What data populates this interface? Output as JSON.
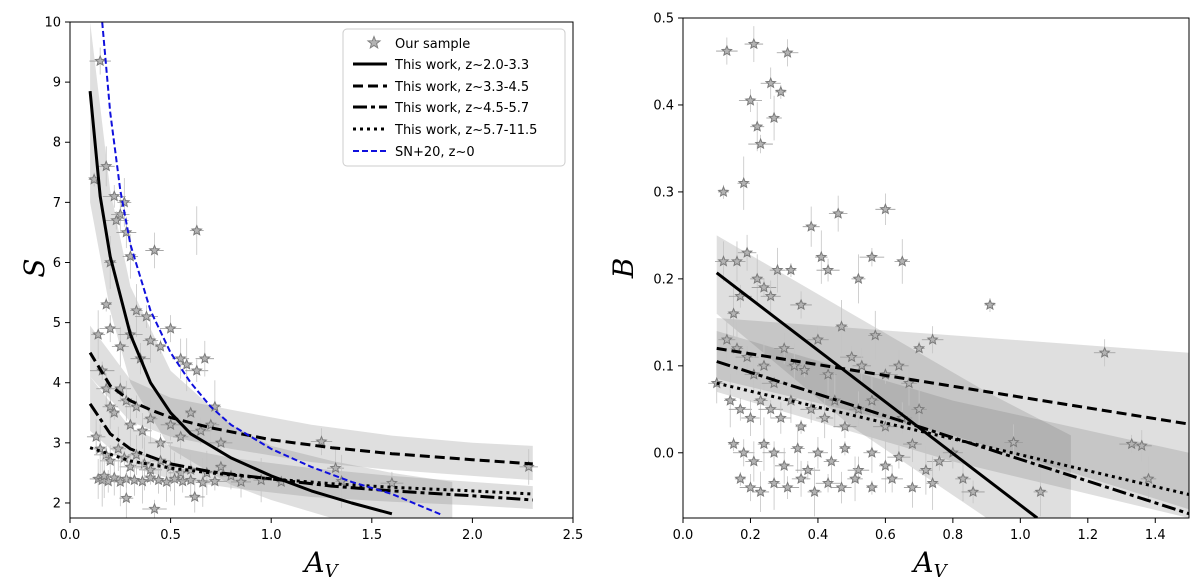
{
  "chart_data": [
    {
      "type": "scatter",
      "panel": "left",
      "xlabel": "A_V",
      "ylabel": "S",
      "xlim": [
        0.0,
        2.5
      ],
      "ylim": [
        1.75,
        10.0
      ],
      "xticks": [
        "0.0",
        "0.5",
        "1.0",
        "1.5",
        "2.0",
        "2.5"
      ],
      "yticks": [
        "2",
        "3",
        "4",
        "5",
        "6",
        "7",
        "8",
        "9",
        "10"
      ],
      "legend": {
        "position": "top-right",
        "entries": [
          {
            "label": "Our sample",
            "style": "star"
          },
          {
            "label": "This work, z~2.0-3.3",
            "style": "solid"
          },
          {
            "label": "This work, z~3.3-4.5",
            "style": "dashed"
          },
          {
            "label": "This work, z~4.5-5.7",
            "style": "dashdot"
          },
          {
            "label": "This work, z~5.7-11.5",
            "style": "dotted"
          },
          {
            "label": "SN+20, z~0",
            "style": "blue-dashed"
          }
        ]
      },
      "series": [
        {
          "name": "This work, z~2.0-3.3",
          "style": "solid",
          "x": [
            0.1,
            0.15,
            0.2,
            0.3,
            0.4,
            0.5,
            0.6,
            0.8,
            1.0,
            1.2,
            1.4,
            1.6
          ],
          "y": [
            8.85,
            7.1,
            6.1,
            4.8,
            4.0,
            3.5,
            3.15,
            2.75,
            2.45,
            2.2,
            2.0,
            1.82
          ]
        },
        {
          "name": "This work, z~3.3-4.5",
          "style": "dashed",
          "x": [
            0.1,
            0.2,
            0.3,
            0.4,
            0.5,
            0.7,
            1.0,
            1.3,
            1.6,
            2.0,
            2.3
          ],
          "y": [
            4.5,
            3.95,
            3.7,
            3.55,
            3.42,
            3.25,
            3.05,
            2.92,
            2.82,
            2.72,
            2.65
          ]
        },
        {
          "name": "This work, z~4.5-5.7",
          "style": "dashdot",
          "x": [
            0.1,
            0.2,
            0.3,
            0.4,
            0.5,
            0.7,
            1.0,
            1.3,
            1.6,
            2.0,
            2.3
          ],
          "y": [
            3.65,
            3.15,
            2.9,
            2.77,
            2.65,
            2.52,
            2.4,
            2.28,
            2.2,
            2.12,
            2.05
          ]
        },
        {
          "name": "This work, z~5.7-11.5",
          "style": "dotted",
          "x": [
            0.1,
            0.3,
            0.5,
            0.7,
            1.0,
            1.3,
            1.6,
            2.0,
            2.3
          ],
          "y": [
            2.92,
            2.7,
            2.58,
            2.5,
            2.4,
            2.32,
            2.26,
            2.2,
            2.15
          ]
        },
        {
          "name": "SN+20, z~0",
          "style": "blue-dashed",
          "x": [
            0.16,
            0.2,
            0.25,
            0.3,
            0.4,
            0.5,
            0.6,
            0.7,
            0.8,
            1.0,
            1.2,
            1.4,
            1.6,
            1.85
          ],
          "y": [
            10.0,
            8.5,
            7.2,
            6.3,
            5.2,
            4.5,
            4.0,
            3.6,
            3.3,
            2.9,
            2.6,
            2.35,
            2.15,
            1.8
          ]
        }
      ],
      "bands": [
        {
          "series": "This work, z~2.0-3.3",
          "x": [
            0.1,
            0.2,
            0.3,
            0.5,
            0.8,
            1.0,
            1.3,
            1.6,
            1.9
          ],
          "lo": [
            7.0,
            5.2,
            4.0,
            2.9,
            2.3,
            2.05,
            1.75,
            1.75,
            1.75
          ],
          "hi": [
            10.0,
            7.2,
            5.6,
            4.2,
            3.3,
            2.95,
            2.7,
            2.5,
            2.35
          ]
        },
        {
          "series": "This work, z~3.3-4.5",
          "x": [
            0.1,
            0.3,
            0.5,
            0.8,
            1.2,
            1.6,
            2.0,
            2.3
          ],
          "lo": [
            4.1,
            3.35,
            3.1,
            2.9,
            2.68,
            2.55,
            2.45,
            2.38
          ],
          "hi": [
            4.95,
            4.05,
            3.75,
            3.55,
            3.3,
            3.12,
            3.0,
            2.95
          ]
        },
        {
          "series": "This work, z~4.5-5.7",
          "x": [
            0.1,
            0.3,
            0.5,
            0.8,
            1.2,
            1.6,
            2.0,
            2.3
          ],
          "lo": [
            3.2,
            2.6,
            2.4,
            2.25,
            2.1,
            2.02,
            1.96,
            1.9
          ],
          "hi": [
            4.1,
            3.25,
            2.95,
            2.75,
            2.58,
            2.45,
            2.35,
            2.28
          ]
        }
      ],
      "points": [
        [
          0.12,
          7.38
        ],
        [
          0.15,
          9.35
        ],
        [
          0.18,
          7.6
        ],
        [
          0.2,
          6.0
        ],
        [
          0.22,
          7.1
        ],
        [
          0.25,
          6.8
        ],
        [
          0.27,
          7.0
        ],
        [
          0.23,
          6.7
        ],
        [
          0.28,
          6.5
        ],
        [
          0.3,
          6.1
        ],
        [
          0.18,
          5.3
        ],
        [
          0.2,
          4.9
        ],
        [
          0.25,
          4.6
        ],
        [
          0.33,
          5.2
        ],
        [
          0.38,
          5.1
        ],
        [
          0.42,
          6.2
        ],
        [
          0.63,
          6.53
        ],
        [
          0.3,
          4.8
        ],
        [
          0.35,
          4.4
        ],
        [
          0.4,
          4.7
        ],
        [
          0.45,
          4.6
        ],
        [
          0.5,
          4.9
        ],
        [
          0.55,
          4.4
        ],
        [
          0.58,
          4.3
        ],
        [
          0.63,
          4.2
        ],
        [
          0.67,
          4.4
        ],
        [
          0.14,
          4.8
        ],
        [
          0.16,
          4.2
        ],
        [
          0.18,
          3.9
        ],
        [
          0.2,
          3.6
        ],
        [
          0.22,
          3.5
        ],
        [
          0.25,
          3.9
        ],
        [
          0.28,
          3.7
        ],
        [
          0.3,
          3.3
        ],
        [
          0.33,
          3.6
        ],
        [
          0.36,
          3.2
        ],
        [
          0.4,
          3.4
        ],
        [
          0.45,
          3.0
        ],
        [
          0.5,
          3.3
        ],
        [
          0.55,
          3.1
        ],
        [
          0.6,
          3.5
        ],
        [
          0.65,
          3.2
        ],
        [
          0.7,
          3.3
        ],
        [
          0.72,
          3.6
        ],
        [
          0.75,
          3.0
        ],
        [
          0.13,
          3.1
        ],
        [
          0.15,
          2.9
        ],
        [
          0.18,
          2.8
        ],
        [
          0.2,
          2.7
        ],
        [
          0.24,
          2.9
        ],
        [
          0.27,
          2.75
        ],
        [
          0.3,
          2.6
        ],
        [
          0.33,
          2.8
        ],
        [
          0.37,
          2.65
        ],
        [
          0.4,
          2.55
        ],
        [
          0.45,
          2.7
        ],
        [
          0.5,
          2.6
        ],
        [
          0.55,
          2.5
        ],
        [
          0.6,
          2.55
        ],
        [
          0.68,
          2.5
        ],
        [
          0.75,
          2.6
        ],
        [
          0.8,
          2.45
        ],
        [
          0.14,
          2.4
        ],
        [
          0.16,
          2.38
        ],
        [
          0.19,
          2.36
        ],
        [
          0.22,
          2.42
        ],
        [
          0.25,
          2.35
        ],
        [
          0.28,
          2.4
        ],
        [
          0.32,
          2.38
        ],
        [
          0.36,
          2.36
        ],
        [
          0.4,
          2.42
        ],
        [
          0.44,
          2.38
        ],
        [
          0.48,
          2.35
        ],
        [
          0.52,
          2.4
        ],
        [
          0.56,
          2.36
        ],
        [
          0.6,
          2.38
        ],
        [
          0.66,
          2.34
        ],
        [
          0.72,
          2.36
        ],
        [
          0.85,
          2.35
        ],
        [
          0.95,
          2.38
        ],
        [
          1.05,
          2.35
        ],
        [
          1.25,
          3.02
        ],
        [
          1.32,
          2.58
        ],
        [
          1.35,
          2.36
        ],
        [
          1.6,
          2.33
        ],
        [
          2.28,
          2.6
        ],
        [
          0.28,
          2.08
        ],
        [
          0.42,
          1.9
        ],
        [
          0.62,
          2.1
        ],
        [
          0.17,
          2.45
        ]
      ]
    },
    {
      "type": "scatter",
      "panel": "right",
      "xlabel": "A_V",
      "ylabel": "B",
      "xlim": [
        0.0,
        1.5
      ],
      "ylim": [
        -0.075,
        0.5
      ],
      "xticks": [
        "0.0",
        "0.2",
        "0.4",
        "0.6",
        "0.8",
        "1.0",
        "1.2",
        "1.4"
      ],
      "yticks": [
        "0.0",
        "0.1",
        "0.2",
        "0.3",
        "0.4",
        "0.5"
      ],
      "series": [
        {
          "name": "This work, z~2.0-3.3",
          "style": "solid",
          "x": [
            0.1,
            1.05
          ],
          "y": [
            0.207,
            -0.075
          ]
        },
        {
          "name": "This work, z~3.3-4.5",
          "style": "dashed",
          "x": [
            0.1,
            1.5
          ],
          "y": [
            0.12,
            0.033
          ]
        },
        {
          "name": "This work, z~4.5-5.7",
          "style": "dashdot",
          "x": [
            0.1,
            1.5
          ],
          "y": [
            0.105,
            -0.07
          ]
        },
        {
          "name": "This work, z~5.7-11.5",
          "style": "dotted",
          "x": [
            0.1,
            1.5
          ],
          "y": [
            0.08,
            -0.048
          ]
        }
      ],
      "bands": [
        {
          "series": "This work, z~2.0-3.3",
          "x": [
            0.1,
            0.5,
            0.9,
            1.15
          ],
          "lo": [
            0.16,
            0.03,
            -0.075,
            -0.075
          ],
          "hi": [
            0.25,
            0.16,
            0.07,
            0.02
          ]
        },
        {
          "series": "This work, z~3.3-4.5",
          "x": [
            0.1,
            0.8,
            1.5
          ],
          "lo": [
            0.085,
            0.02,
            -0.065
          ],
          "hi": [
            0.155,
            0.135,
            0.115
          ]
        },
        {
          "series": "This work, z~4.5-5.7",
          "x": [
            0.1,
            0.8,
            1.5
          ],
          "lo": [
            0.07,
            -0.01,
            -0.075
          ],
          "hi": [
            0.14,
            0.06,
            0.0
          ]
        }
      ],
      "points": [
        [
          0.12,
          0.3
        ],
        [
          0.13,
          0.462
        ],
        [
          0.16,
          0.22
        ],
        [
          0.18,
          0.31
        ],
        [
          0.2,
          0.405
        ],
        [
          0.21,
          0.47
        ],
        [
          0.22,
          0.375
        ],
        [
          0.23,
          0.355
        ],
        [
          0.26,
          0.425
        ],
        [
          0.27,
          0.385
        ],
        [
          0.29,
          0.415
        ],
        [
          0.31,
          0.46
        ],
        [
          0.12,
          0.22
        ],
        [
          0.15,
          0.16
        ],
        [
          0.17,
          0.18
        ],
        [
          0.19,
          0.23
        ],
        [
          0.22,
          0.2
        ],
        [
          0.24,
          0.19
        ],
        [
          0.26,
          0.18
        ],
        [
          0.28,
          0.21
        ],
        [
          0.32,
          0.21
        ],
        [
          0.35,
          0.17
        ],
        [
          0.38,
          0.26
        ],
        [
          0.41,
          0.225
        ],
        [
          0.43,
          0.21
        ],
        [
          0.46,
          0.275
        ],
        [
          0.52,
          0.2
        ],
        [
          0.56,
          0.225
        ],
        [
          0.6,
          0.28
        ],
        [
          0.65,
          0.22
        ],
        [
          0.91,
          0.17
        ],
        [
          1.25,
          0.115
        ],
        [
          0.13,
          0.13
        ],
        [
          0.16,
          0.12
        ],
        [
          0.19,
          0.11
        ],
        [
          0.21,
          0.09
        ],
        [
          0.24,
          0.1
        ],
        [
          0.27,
          0.08
        ],
        [
          0.3,
          0.12
        ],
        [
          0.33,
          0.1
        ],
        [
          0.36,
          0.095
        ],
        [
          0.4,
          0.13
        ],
        [
          0.43,
          0.09
        ],
        [
          0.47,
          0.145
        ],
        [
          0.5,
          0.11
        ],
        [
          0.53,
          0.1
        ],
        [
          0.57,
          0.135
        ],
        [
          0.6,
          0.09
        ],
        [
          0.64,
          0.1
        ],
        [
          0.67,
          0.08
        ],
        [
          0.7,
          0.12
        ],
        [
          0.74,
          0.13
        ],
        [
          0.1,
          0.08
        ],
        [
          0.14,
          0.06
        ],
        [
          0.17,
          0.05
        ],
        [
          0.2,
          0.04
        ],
        [
          0.23,
          0.06
        ],
        [
          0.26,
          0.05
        ],
        [
          0.29,
          0.04
        ],
        [
          0.32,
          0.06
        ],
        [
          0.35,
          0.03
        ],
        [
          0.38,
          0.05
        ],
        [
          0.42,
          0.04
        ],
        [
          0.45,
          0.06
        ],
        [
          0.48,
          0.03
        ],
        [
          0.52,
          0.05
        ],
        [
          0.56,
          0.06
        ],
        [
          0.6,
          0.03
        ],
        [
          0.65,
          0.04
        ],
        [
          0.7,
          0.05
        ],
        [
          0.15,
          0.01
        ],
        [
          0.18,
          0.0
        ],
        [
          0.21,
          -0.01
        ],
        [
          0.24,
          0.01
        ],
        [
          0.27,
          0.0
        ],
        [
          0.3,
          -0.015
        ],
        [
          0.34,
          0.005
        ],
        [
          0.37,
          -0.02
        ],
        [
          0.4,
          0.0
        ],
        [
          0.44,
          -0.01
        ],
        [
          0.48,
          0.005
        ],
        [
          0.52,
          -0.02
        ],
        [
          0.56,
          0.0
        ],
        [
          0.6,
          -0.015
        ],
        [
          0.64,
          -0.005
        ],
        [
          0.68,
          0.01
        ],
        [
          0.72,
          -0.02
        ],
        [
          0.76,
          -0.01
        ],
        [
          0.8,
          0.0
        ],
        [
          0.83,
          -0.03
        ],
        [
          0.17,
          -0.03
        ],
        [
          0.2,
          -0.04
        ],
        [
          0.23,
          -0.045
        ],
        [
          0.27,
          -0.035
        ],
        [
          0.31,
          -0.04
        ],
        [
          0.35,
          -0.03
        ],
        [
          0.39,
          -0.045
        ],
        [
          0.43,
          -0.035
        ],
        [
          0.47,
          -0.04
        ],
        [
          0.51,
          -0.03
        ],
        [
          0.56,
          -0.04
        ],
        [
          0.62,
          -0.03
        ],
        [
          0.68,
          -0.04
        ],
        [
          0.74,
          -0.035
        ],
        [
          0.86,
          -0.045
        ],
        [
          0.98,
          0.012
        ],
        [
          1.06,
          -0.045
        ],
        [
          1.33,
          0.01
        ],
        [
          1.36,
          0.008
        ],
        [
          1.38,
          -0.03
        ]
      ]
    }
  ]
}
